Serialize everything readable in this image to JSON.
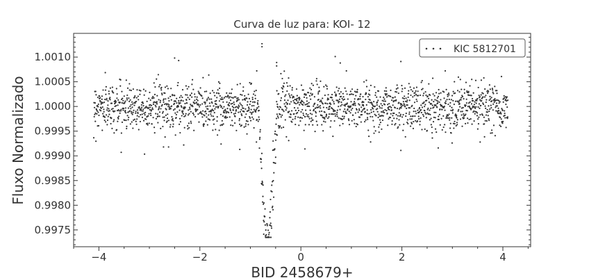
{
  "chart_data": {
    "type": "scatter",
    "title": "Curva de luz para: KOI- 12",
    "xlabel": "BID 2458679+",
    "ylabel": "Fluxo Normalizado",
    "xlim": [
      -4.5,
      4.55
    ],
    "ylim": [
      0.99716,
      1.00148
    ],
    "x_ticks": [
      -4,
      -2,
      0,
      2,
      4
    ],
    "x_tick_labels": [
      "−4",
      "−2",
      "0",
      "2",
      "4"
    ],
    "y_ticks": [
      0.9975,
      0.998,
      0.9985,
      0.999,
      0.9995,
      1.0,
      1.0005,
      1.001
    ],
    "y_tick_labels": [
      "0.9975",
      "0.9980",
      "0.9985",
      "0.9990",
      "0.9995",
      "1.0000",
      "1.0005",
      "1.0010"
    ],
    "grid": false,
    "legend_position": "top-right",
    "colors": {
      "points": "#333333",
      "axes": "#333333",
      "legend_border": "#555555"
    },
    "series": [
      {
        "name": "KIC 5812701",
        "x_range": [
          -4.1,
          4.1
        ],
        "baseline": 1.0,
        "scatter_sigma": 0.00023,
        "transit": {
          "center": -0.66,
          "depth": 0.00265,
          "half_width": 0.19
        },
        "outliers": [
          [
            -0.77,
            1.00127
          ],
          [
            -0.77,
            1.00121
          ],
          [
            -0.48,
            1.00089
          ],
          [
            -0.48,
            1.00082
          ],
          [
            -2.5,
            1.00098
          ],
          [
            -2.42,
            1.00093
          ],
          [
            0.68,
            1.00101
          ],
          [
            0.78,
            1.00088
          ],
          [
            1.98,
            1.00091
          ],
          [
            -1.21,
            0.99913
          ],
          [
            -2.72,
            0.99918
          ],
          [
            -2.62,
            0.99918
          ],
          [
            1.98,
            0.99911
          ],
          [
            -2.32,
            0.99922
          ],
          [
            -1.58,
            0.99924
          ],
          [
            2.72,
            0.99916
          ],
          [
            -0.88,
            0.99928
          ],
          [
            0.08,
            0.99914
          ],
          [
            3.55,
            0.99928
          ],
          [
            -0.54,
            0.99912
          ],
          [
            -0.55,
            0.9993
          ],
          [
            -0.47,
            0.99942
          ]
        ]
      }
    ]
  }
}
